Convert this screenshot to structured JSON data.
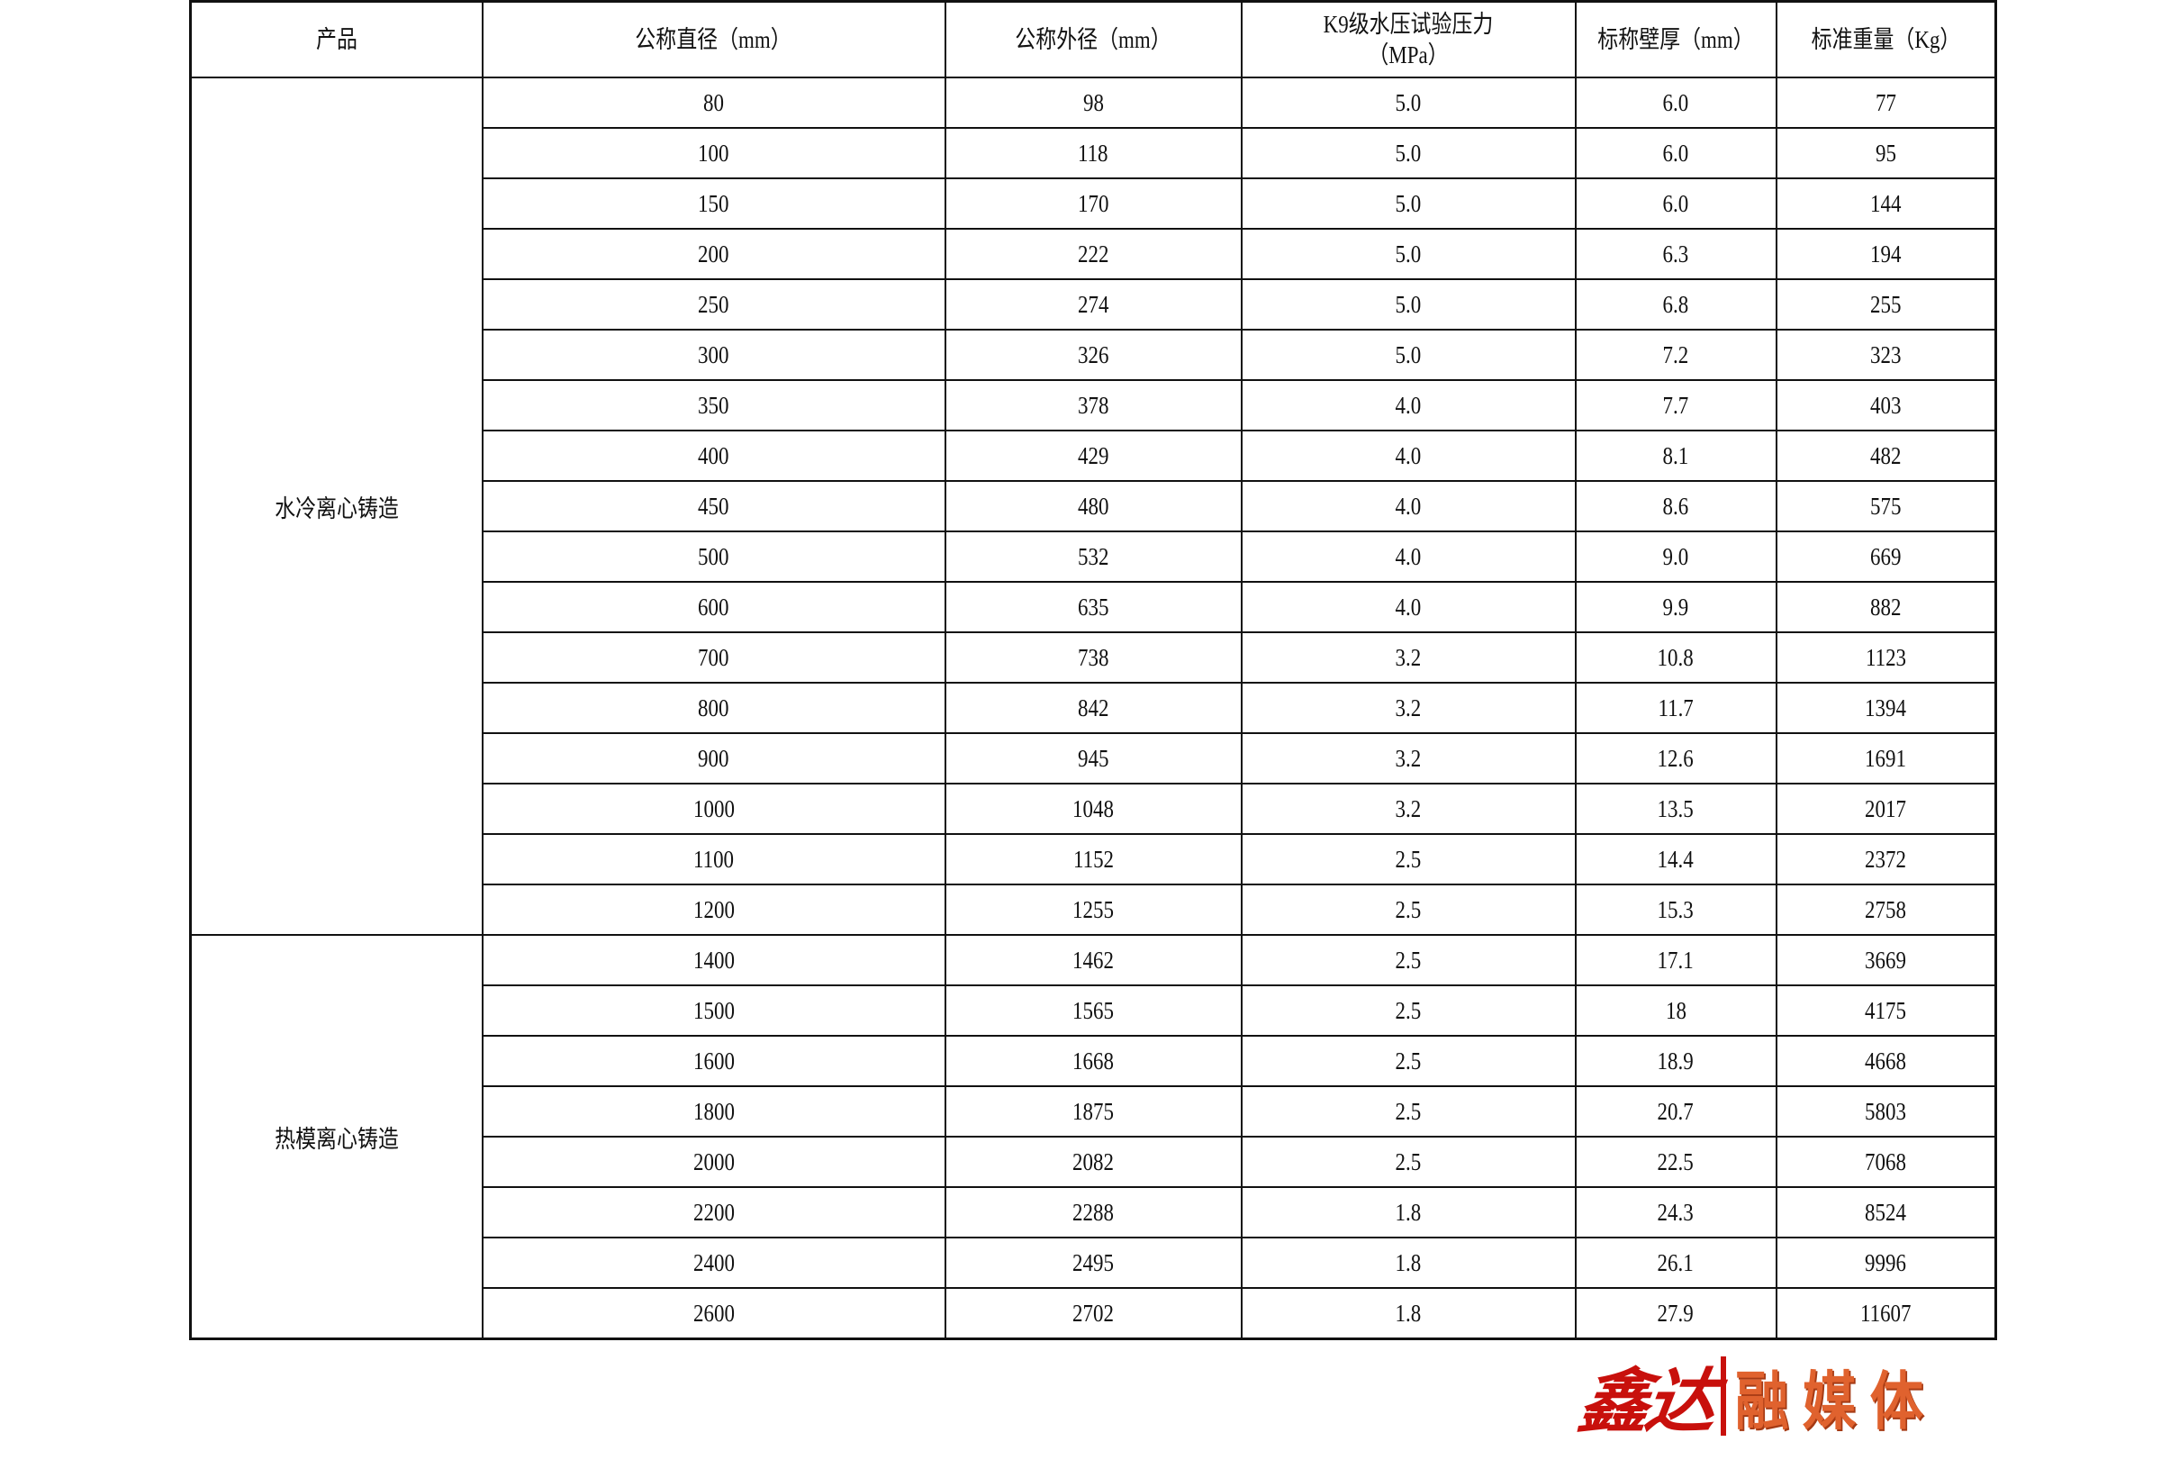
{
  "headers": [
    "产品",
    "公称直径（mm）",
    "公称外径（mm）",
    "K9级水压试验压力（MPa）",
    "标称壁厚（mm）",
    "标准重量（Kg）"
  ],
  "groups": [
    {
      "product": "水冷离心铸造",
      "rows": [
        [
          "80",
          "98",
          "5.0",
          "6.0",
          "77"
        ],
        [
          "100",
          "118",
          "5.0",
          "6.0",
          "95"
        ],
        [
          "150",
          "170",
          "5.0",
          "6.0",
          "144"
        ],
        [
          "200",
          "222",
          "5.0",
          "6.3",
          "194"
        ],
        [
          "250",
          "274",
          "5.0",
          "6.8",
          "255"
        ],
        [
          "300",
          "326",
          "5.0",
          "7.2",
          "323"
        ],
        [
          "350",
          "378",
          "4.0",
          "7.7",
          "403"
        ],
        [
          "400",
          "429",
          "4.0",
          "8.1",
          "482"
        ],
        [
          "450",
          "480",
          "4.0",
          "8.6",
          "575"
        ],
        [
          "500",
          "532",
          "4.0",
          "9.0",
          "669"
        ],
        [
          "600",
          "635",
          "4.0",
          "9.9",
          "882"
        ],
        [
          "700",
          "738",
          "3.2",
          "10.8",
          "1123"
        ],
        [
          "800",
          "842",
          "3.2",
          "11.7",
          "1394"
        ],
        [
          "900",
          "945",
          "3.2",
          "12.6",
          "1691"
        ],
        [
          "1000",
          "1048",
          "3.2",
          "13.5",
          "2017"
        ],
        [
          "1100",
          "1152",
          "2.5",
          "14.4",
          "2372"
        ],
        [
          "1200",
          "1255",
          "2.5",
          "15.3",
          "2758"
        ]
      ]
    },
    {
      "product": "热模离心铸造",
      "rows": [
        [
          "1400",
          "1462",
          "2.5",
          "17.1",
          "3669"
        ],
        [
          "1500",
          "1565",
          "2.5",
          "18",
          "4175"
        ],
        [
          "1600",
          "1668",
          "2.5",
          "18.9",
          "4668"
        ],
        [
          "1800",
          "1875",
          "2.5",
          "20.7",
          "5803"
        ],
        [
          "2000",
          "2082",
          "2.5",
          "22.5",
          "7068"
        ],
        [
          "2200",
          "2288",
          "1.8",
          "24.3",
          "8524"
        ],
        [
          "2400",
          "2495",
          "1.8",
          "26.1",
          "9996"
        ],
        [
          "2600",
          "2702",
          "1.8",
          "27.9",
          "11607"
        ]
      ]
    }
  ],
  "logo": {
    "brand": "鑫达",
    "suffix": "融媒体"
  }
}
